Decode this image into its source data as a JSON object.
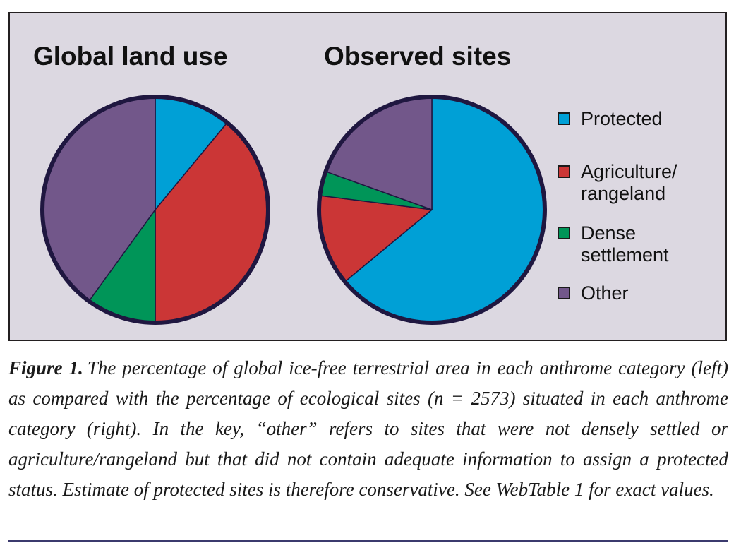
{
  "colors": {
    "protected": "#00a0d6",
    "agriculture": "#cb3636",
    "dense": "#009558",
    "other": "#72578a",
    "outline": "#1f1740",
    "panel": "#dcd8e1"
  },
  "chart_data": [
    {
      "type": "pie",
      "title": "Global land use",
      "slices": [
        {
          "key": "protected",
          "value": 11
        },
        {
          "key": "agriculture",
          "value": 39
        },
        {
          "key": "dense",
          "value": 10
        },
        {
          "key": "other",
          "value": 40
        }
      ]
    },
    {
      "type": "pie",
      "title": "Observed sites",
      "slices": [
        {
          "key": "protected",
          "value": 64
        },
        {
          "key": "agriculture",
          "value": 13
        },
        {
          "key": "dense",
          "value": 3.5
        },
        {
          "key": "other",
          "value": 19.5
        }
      ]
    }
  ],
  "legend": {
    "placement": "right",
    "items": [
      {
        "key": "protected",
        "label": "Protected"
      },
      {
        "key": "agriculture",
        "label": "Agriculture/\nrangeland"
      },
      {
        "key": "dense",
        "label": "Dense\nsettlement"
      },
      {
        "key": "other",
        "label": "Other"
      }
    ]
  },
  "caption": {
    "label": "Figure 1.",
    "text": "The percentage of global ice-free terrestrial area in each anthrome category (left) as compared with the percentage of ecological sites (n = 2573) situated in each anthrome category (right). In the key, “other” refers to sites that were not densely settled or agriculture/rangeland but that did not contain adequate information to assign a protected status. Estimate of protected sites is therefore conservative. See WebTable 1 for exact values."
  }
}
